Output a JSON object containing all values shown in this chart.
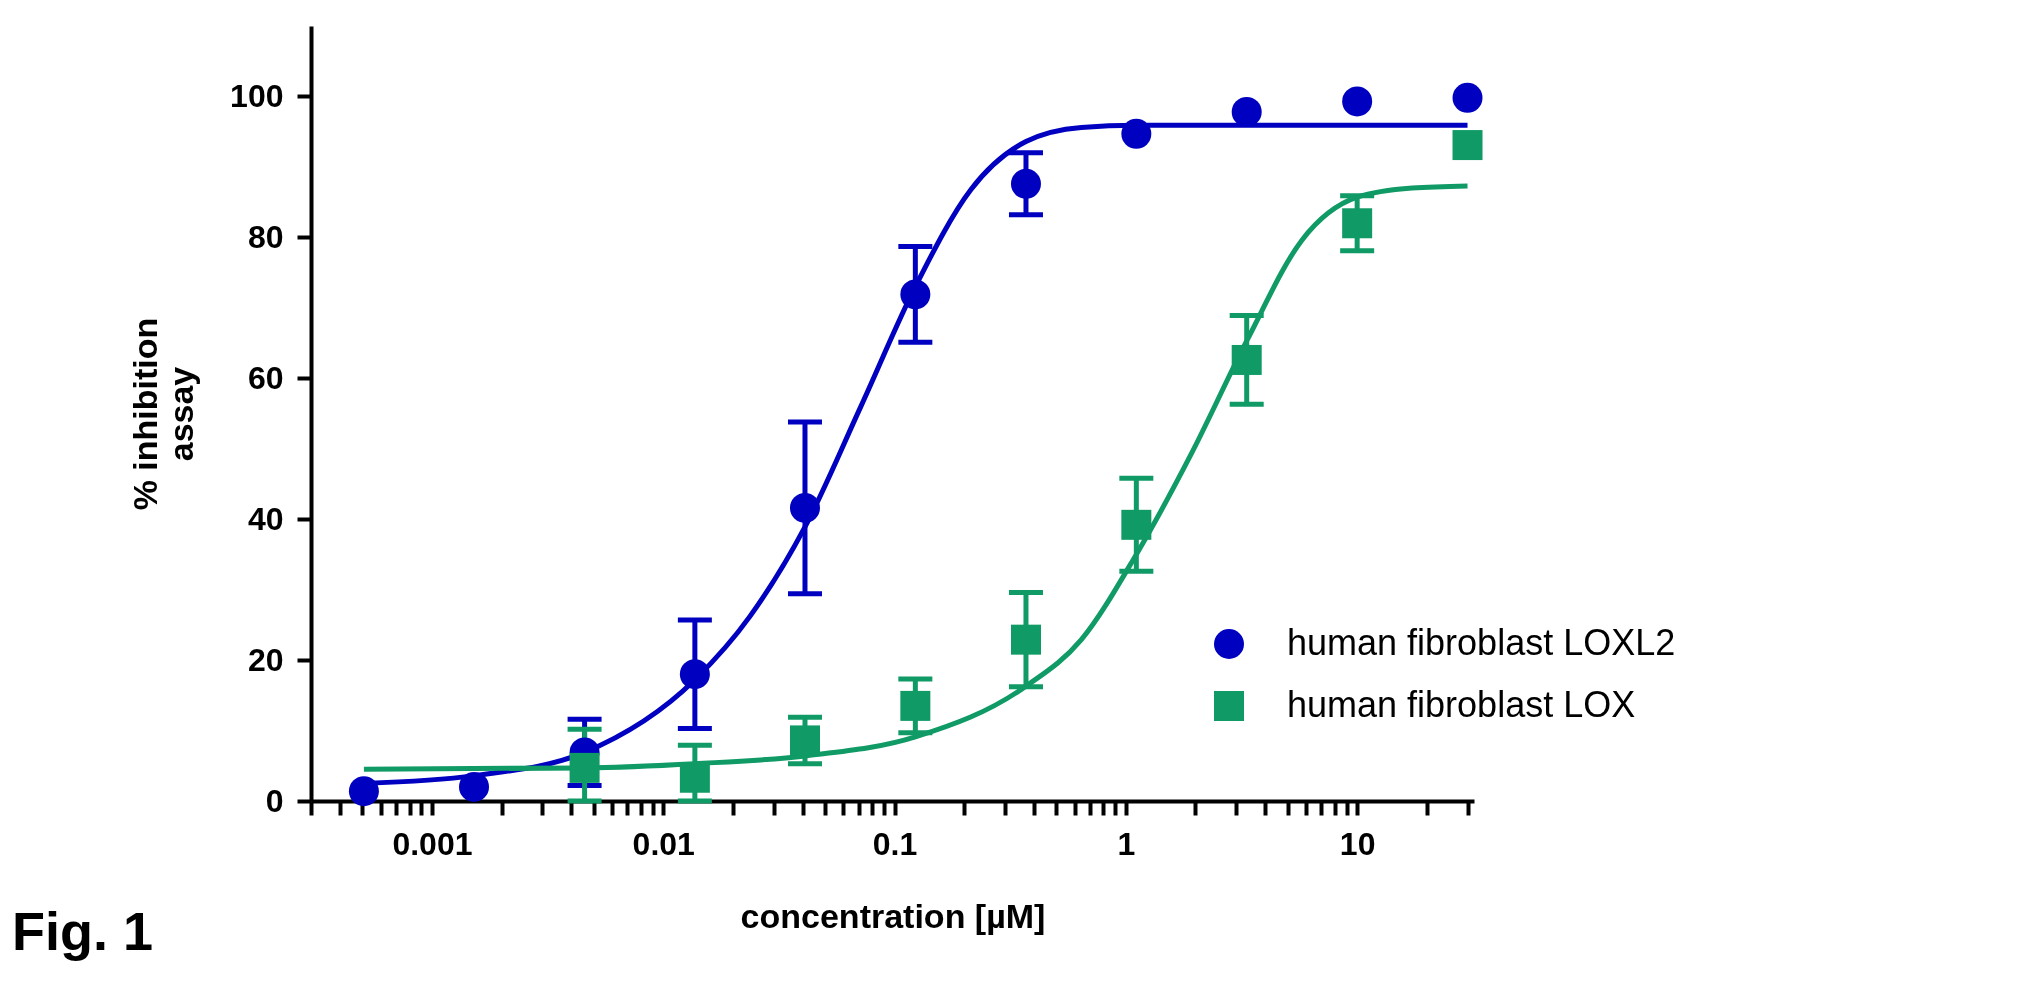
{
  "chart_data": {
    "type": "scatter",
    "xlabel": "concentration [µM]",
    "ylabel": "% inhibition\nassay",
    "log": "x",
    "grid": false,
    "legend": "bottom right",
    "line_style": "solid",
    "xlim": [
      0.0003,
      32
    ],
    "ylim": [
      0,
      110
    ],
    "xticks": [
      {
        "value": 0.0003,
        "label": null
      },
      {
        "value": 0.0004,
        "label": null
      },
      {
        "value": 0.0005,
        "label": null
      },
      {
        "value": 0.0006,
        "label": null
      },
      {
        "value": 0.0007,
        "label": null
      },
      {
        "value": 0.0008,
        "label": null
      },
      {
        "value": 0.0009,
        "label": null
      },
      {
        "value": 0.001,
        "label": "0.001"
      },
      {
        "value": 0.002,
        "label": null
      },
      {
        "value": 0.003,
        "label": null
      },
      {
        "value": 0.004,
        "label": null
      },
      {
        "value": 0.005,
        "label": null
      },
      {
        "value": 0.006,
        "label": null
      },
      {
        "value": 0.007,
        "label": null
      },
      {
        "value": 0.008,
        "label": null
      },
      {
        "value": 0.009,
        "label": null
      },
      {
        "value": 0.01,
        "label": "0.01"
      },
      {
        "value": 0.02,
        "label": null
      },
      {
        "value": 0.03,
        "label": null
      },
      {
        "value": 0.04,
        "label": null
      },
      {
        "value": 0.05,
        "label": null
      },
      {
        "value": 0.06,
        "label": null
      },
      {
        "value": 0.07,
        "label": null
      },
      {
        "value": 0.08,
        "label": null
      },
      {
        "value": 0.09,
        "label": null
      },
      {
        "value": 0.1,
        "label": "0.1"
      },
      {
        "value": 0.2,
        "label": null
      },
      {
        "value": 0.3,
        "label": null
      },
      {
        "value": 0.4,
        "label": null
      },
      {
        "value": 0.5,
        "label": null
      },
      {
        "value": 0.6,
        "label": null
      },
      {
        "value": 0.7,
        "label": null
      },
      {
        "value": 0.8,
        "label": null
      },
      {
        "value": 0.9,
        "label": null
      },
      {
        "value": 1,
        "label": "1"
      },
      {
        "value": 2,
        "label": null
      },
      {
        "value": 3,
        "label": null
      },
      {
        "value": 4,
        "label": null
      },
      {
        "value": 5,
        "label": null
      },
      {
        "value": 6,
        "label": null
      },
      {
        "value": 7,
        "label": null
      },
      {
        "value": 8,
        "label": null
      },
      {
        "value": 9,
        "label": null
      },
      {
        "value": 10,
        "label": "10"
      },
      {
        "value": 20,
        "label": null
      },
      {
        "value": 30,
        "label": null
      }
    ],
    "yticks": [
      0,
      20,
      40,
      60,
      80,
      100
    ],
    "annotations": [
      "Fig. 1"
    ],
    "series": [
      {
        "name": "human fibroblast LOXL2",
        "marker": "circle",
        "color": "#0000c0",
        "x": [
          0.000508,
          0.00152,
          0.00457,
          0.0137,
          0.041,
          0.123,
          0.37,
          1.11,
          3.33,
          10,
          30
        ],
        "values": [
          1.4,
          2.0,
          6.9,
          18,
          41.6,
          71.9,
          87.6,
          94.7,
          97.8,
          99.3,
          99.8
        ],
        "errors": [
          null,
          null,
          4.7,
          7.7,
          12.2,
          6.8,
          4.4,
          null,
          null,
          null,
          null
        ]
      },
      {
        "name": "human fibroblast LOX",
        "marker": "square",
        "color": "#109a66",
        "x": [
          0.00457,
          0.0137,
          0.041,
          0.123,
          0.37,
          1.11,
          3.33,
          10,
          30
        ],
        "values": [
          4.7,
          3.3,
          8.6,
          13.5,
          22.9,
          39.2,
          62.6,
          82,
          93.1
        ],
        "errors": [
          [
            0,
            10.2
          ],
          [
            0,
            7.9
          ],
          3.3,
          3.8,
          6.7,
          6.6,
          6.3,
          3.9,
          null
        ]
      },
      {
        "type": "line",
        "color": "#0000c0",
        "x": [
          0.000508,
          0.00152,
          0.00457,
          0.0137,
          0.0237,
          0.041,
          0.0713,
          0.123,
          0.214,
          0.37,
          0.642,
          1.11,
          30
        ],
        "values": [
          2.5,
          3.6,
          6.9,
          17.2,
          26.2,
          38.9,
          55.9,
          73,
          86.8,
          93.6,
          95.6,
          95.9,
          95.9
        ]
      },
      {
        "type": "line",
        "color": "#109a66",
        "x": [
          0.000508,
          0.00457,
          0.0137,
          0.041,
          0.123,
          0.37,
          0.642,
          1.11,
          1.92,
          3.33,
          5.77,
          10,
          17.3,
          30
        ],
        "values": [
          4.5,
          4.7,
          5.3,
          6.4,
          9.1,
          16.3,
          22.9,
          35,
          49.3,
          65.3,
          79.6,
          85.7,
          87,
          87.3
        ]
      }
    ]
  }
}
